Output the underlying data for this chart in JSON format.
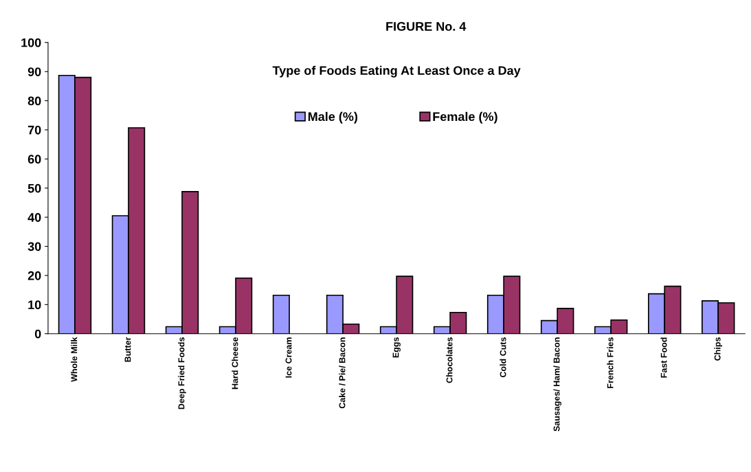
{
  "chart_data": {
    "type": "bar",
    "title": "FIGURE No. 4",
    "subtitle": "Type of Foods Eating At Least Once a Day",
    "categories": [
      "Whole Milk",
      "Butter",
      "Deep Fried Foods",
      "Hard Cheese",
      "Ice Cream",
      "Cake / Pie/ Bacon",
      "Eggs",
      "Chocolates",
      "Cold Cuts",
      "Sausages/ Ham/ Bacon",
      "French Fries",
      "Fast Food",
      "Chips"
    ],
    "series": [
      {
        "name": "Male (%)",
        "color": "#9999ff",
        "values": [
          88.7,
          40.5,
          2.4,
          2.4,
          13.2,
          13.2,
          2.4,
          2.4,
          13.2,
          4.5,
          2.4,
          13.7,
          11.3
        ]
      },
      {
        "name": "Female (%)",
        "color": "#993366",
        "values": [
          88,
          70.7,
          48.8,
          19.1,
          null,
          3.3,
          19.7,
          7.3,
          19.7,
          8.7,
          4.7,
          16.3,
          10.6
        ]
      }
    ],
    "ylim": [
      0,
      100
    ],
    "yticks": [
      0,
      10,
      20,
      30,
      40,
      50,
      60,
      70,
      80,
      90,
      100
    ],
    "grid": false,
    "legend": "top"
  }
}
